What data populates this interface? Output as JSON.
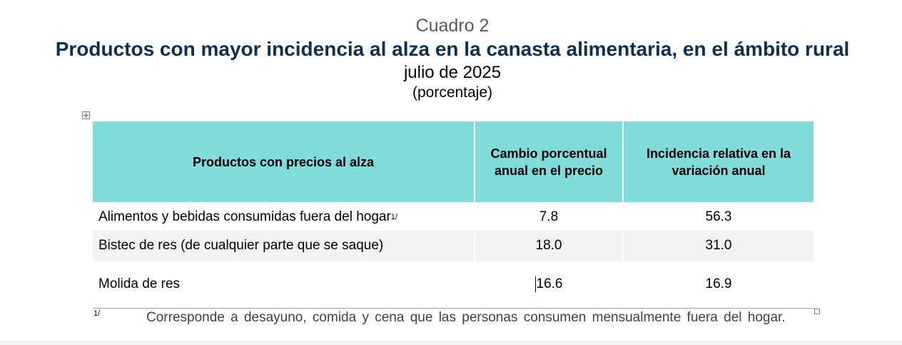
{
  "header": {
    "cuadro": "Cuadro 2",
    "title": "Productos con mayor incidencia al alza en la canasta alimentaria, en el ámbito rural",
    "period": "julio de 2025",
    "units": "(porcentaje)"
  },
  "table": {
    "columns": [
      "Productos con precios al alza",
      "Cambio porcentual anual en el precio",
      "Incidencia relativa en la variación anual"
    ],
    "rows": [
      {
        "product": "Alimentos y bebidas consumidas fuera del hogar",
        "note": "1/",
        "change": "7.8",
        "incidence": "56.3"
      },
      {
        "product": "Bistec de res (de cualquier parte que se saque)",
        "change": "18.0",
        "incidence": "31.0"
      },
      {
        "product": "Molida de res",
        "change": "16.6",
        "incidence": "16.9"
      }
    ]
  },
  "footnote": {
    "mark": "1/",
    "text": "Corresponde a desayuno, comida y cena que las personas consumen mensualmente fuera del hogar."
  },
  "colors": {
    "header_fill": "#80dcd9",
    "title_color": "#0d3050",
    "stripe": "#f2f2f2"
  }
}
